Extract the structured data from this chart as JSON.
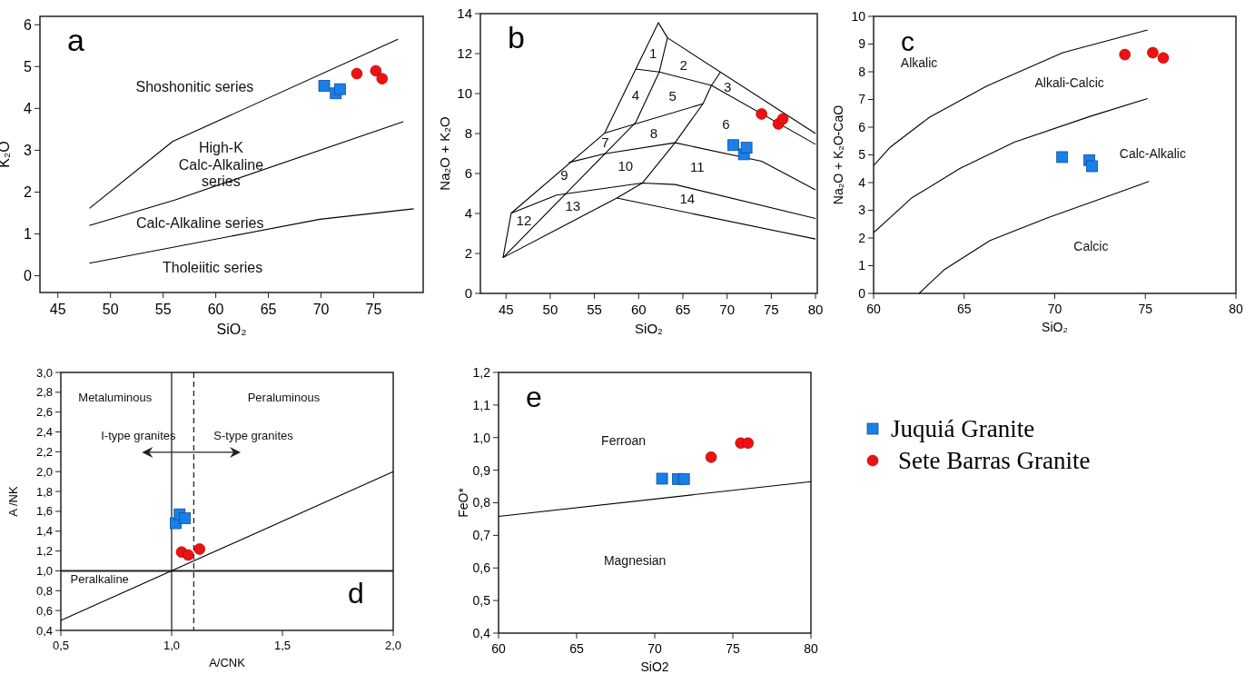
{
  "chart_data": [
    {
      "type": "scatter",
      "title": "a",
      "xlabel": "SiO₂",
      "ylabel": "K₂O",
      "xlim": [
        43.3,
        79.7
      ],
      "ylim": [
        -0.4,
        6.2
      ],
      "xticks": [
        45,
        50,
        55,
        60,
        65,
        70,
        75
      ],
      "yticks": [
        0,
        1,
        2,
        3,
        4,
        5,
        6
      ],
      "series": [
        {
          "type": "scatter",
          "color": "#1a7fe8",
          "marker": "square",
          "x": [
            70.3,
            71.4,
            71.8
          ],
          "values": [
            4.54,
            4.36,
            4.46
          ]
        },
        {
          "type": "scatter",
          "color": "#ee1111",
          "marker": "circle",
          "x": [
            73.4,
            75.2,
            75.8
          ],
          "values": [
            4.83,
            4.9,
            4.71
          ]
        },
        {
          "type": "line",
          "color": "#000000",
          "x": [
            48,
            55.9,
            77.3
          ],
          "values": [
            1.61,
            3.21,
            5.65
          ]
        },
        {
          "type": "line",
          "color": "#000000",
          "x": [
            48,
            56.1,
            77.8
          ],
          "values": [
            1.2,
            1.81,
            3.68
          ]
        },
        {
          "type": "line",
          "color": "#000000",
          "x": [
            48,
            69.9,
            78.8
          ],
          "values": [
            0.3,
            1.35,
            1.6
          ]
        }
      ],
      "annotations": [
        "Shoshonitic series",
        "High-K\nCalc-Alkaline\nseries",
        "Calc-Alkaline series",
        "Tholeiitic series"
      ]
    },
    {
      "type": "scatter",
      "title": "b",
      "xlabel": "SiO₂",
      "ylabel": "Na₂O + K₂O",
      "xlim": [
        42.1,
        80.2
      ],
      "ylim": [
        0,
        14
      ],
      "xticks": [
        45,
        50,
        55,
        60,
        65,
        70,
        75,
        80
      ],
      "yticks": [
        0,
        2,
        4,
        6,
        8,
        10,
        12,
        14
      ],
      "series": [
        {
          "type": "scatter",
          "color": "#1a7fe8",
          "marker": "square",
          "x": [
            70.7,
            71.9,
            72.2
          ],
          "values": [
            7.42,
            6.96,
            7.29
          ]
        },
        {
          "type": "scatter",
          "color": "#ee1111",
          "marker": "circle",
          "x": [
            73.9,
            75.8,
            76.3
          ],
          "values": [
            8.98,
            8.48,
            8.73
          ]
        },
        {
          "type": "line",
          "color": "#000000",
          "x": [
            44.66,
            45.58,
            56.15,
            62.23,
            63.26,
            80
          ],
          "values": [
            1.79,
            4.01,
            8.02,
            13.55,
            12.79,
            8.0
          ]
        },
        {
          "type": "line",
          "color": "#000000",
          "x": [
            63.26,
            62.33,
            59.65,
            44.66
          ],
          "values": [
            12.79,
            11.08,
            8.55,
            1.79
          ]
        },
        {
          "type": "line",
          "color": "#000000",
          "x": [
            59.65,
            62.33,
            68.23,
            80
          ],
          "values": [
            11.23,
            11.08,
            10.41,
            7.46
          ]
        },
        {
          "type": "line",
          "color": "#000000",
          "x": [
            69.26,
            68.23,
            67.27,
            64.11,
            60.41,
            57.53,
            44.66
          ],
          "values": [
            11.08,
            10.41,
            9.49,
            7.54,
            5.52,
            4.77,
            1.79
          ]
        },
        {
          "type": "line",
          "color": "#000000",
          "x": [
            56.15,
            67.27
          ],
          "values": [
            8.02,
            9.49
          ]
        },
        {
          "type": "line",
          "color": "#000000",
          "x": [
            52.1,
            56.15,
            64.11,
            73.9,
            80
          ],
          "values": [
            6.55,
            6.99,
            7.54,
            6.61,
            5.18
          ]
        },
        {
          "type": "line",
          "color": "#000000",
          "x": [
            45.58,
            50.73,
            60.41,
            64.11,
            80
          ],
          "values": [
            4.01,
            4.92,
            5.52,
            5.45,
            3.75
          ]
        },
        {
          "type": "line",
          "color": "#000000",
          "x": [
            57.53,
            80
          ],
          "values": [
            4.77,
            2.72
          ]
        }
      ],
      "annotations": [
        "1",
        "2",
        "3",
        "4",
        "5",
        "6",
        "7",
        "8",
        "9",
        "10",
        "11",
        "12",
        "13",
        "14"
      ]
    },
    {
      "type": "scatter",
      "title": "c",
      "xlabel": "SiO₂",
      "ylabel": "Na₂O + K₂O-CaO",
      "xlim": [
        60,
        80
      ],
      "ylim": [
        0,
        10
      ],
      "xticks": [
        60,
        65,
        70,
        75,
        80
      ],
      "yticks": [
        0,
        1,
        2,
        3,
        4,
        5,
        6,
        7,
        8,
        9,
        10
      ],
      "series": [
        {
          "type": "scatter",
          "color": "#1a7fe8",
          "marker": "square",
          "x": [
            70.41,
            71.91,
            72.06
          ],
          "values": [
            4.92,
            4.81,
            4.59
          ]
        },
        {
          "type": "scatter",
          "color": "#ee1111",
          "marker": "circle",
          "x": [
            73.87,
            75.41,
            75.99
          ],
          "values": [
            8.62,
            8.69,
            8.5
          ]
        },
        {
          "type": "line",
          "color": "#000000",
          "x": [
            60,
            60.92,
            63.09,
            66.27,
            70.44,
            75.12
          ],
          "values": [
            4.61,
            5.28,
            6.36,
            7.49,
            8.69,
            9.51
          ]
        },
        {
          "type": "line",
          "color": "#000000",
          "x": [
            60,
            62.09,
            64.76,
            67.77,
            71.95,
            75.12
          ],
          "values": [
            2.19,
            3.44,
            4.51,
            5.46,
            6.39,
            7.03
          ]
        },
        {
          "type": "line",
          "color": "#000000",
          "x": [
            62.51,
            63.93,
            66.43,
            69.61,
            72.45,
            75.2
          ],
          "values": [
            0,
            0.87,
            1.91,
            2.73,
            3.39,
            4.04
          ]
        }
      ],
      "annotations": [
        "Alkalic",
        "Alkali-Calcic",
        "Calc-Alkalic",
        "Calcic"
      ]
    },
    {
      "type": "scatter",
      "title": "d",
      "xlabel": "A/CNK",
      "ylabel": "A /NK",
      "xlim": [
        0.5,
        2.0
      ],
      "ylim": [
        0.4,
        3.0
      ],
      "xticks": [
        {
          "value": 0.5,
          "label": "0,5"
        },
        {
          "value": 1.0,
          "label": "1,0"
        },
        {
          "value": 1.5,
          "label": "1,5"
        },
        {
          "value": 2.0,
          "label": "2,0"
        }
      ],
      "yticks": [
        {
          "value": 0.4,
          "label": "0,4"
        },
        {
          "value": 0.6,
          "label": "0,6"
        },
        {
          "value": 0.8,
          "label": "0,8"
        },
        {
          "value": 1.0,
          "label": "1,0"
        },
        {
          "value": 1.2,
          "label": "1,2"
        },
        {
          "value": 1.4,
          "label": "1,4"
        },
        {
          "value": 1.6,
          "label": "1,6"
        },
        {
          "value": 1.8,
          "label": "1,8"
        },
        {
          "value": 2.0,
          "label": "2,0"
        },
        {
          "value": 2.2,
          "label": "2,2"
        },
        {
          "value": 2.4,
          "label": "2,4"
        },
        {
          "value": 2.6,
          "label": "2,6"
        },
        {
          "value": 2.8,
          "label": "2,8"
        },
        {
          "value": 3.0,
          "label": "3,0"
        }
      ],
      "series": [
        {
          "type": "scatter",
          "color": "#1a7fe8",
          "marker": "square",
          "x": [
            1.018,
            1.036,
            1.06
          ],
          "values": [
            1.48,
            1.57,
            1.53
          ]
        },
        {
          "type": "scatter",
          "color": "#ee1111",
          "marker": "circle",
          "x": [
            1.045,
            1.075,
            1.126
          ],
          "values": [
            1.19,
            1.16,
            1.22
          ]
        },
        {
          "type": "line",
          "color": "#000000",
          "x": [
            0.5,
            2.0
          ],
          "values": [
            0.5,
            2.0
          ]
        }
      ],
      "ref_lines": [
        {
          "axis": "x",
          "value": 1.0
        },
        {
          "axis": "x",
          "value": 1.1,
          "line_style": "dashed"
        },
        {
          "axis": "y",
          "value": 1.0
        }
      ],
      "annotations": [
        "Metaluminous",
        "Peraluminous",
        "I-type granites",
        "S-type granites",
        "Peralkaline"
      ]
    },
    {
      "type": "scatter",
      "title": "e",
      "xlabel": "SiO2",
      "ylabel": "FeO*",
      "xlim": [
        60,
        80
      ],
      "ylim": [
        0.4,
        1.2
      ],
      "legend": "right",
      "xticks": [
        60,
        65,
        70,
        75,
        80
      ],
      "yticks": [
        {
          "value": 0.4,
          "label": "0,4"
        },
        {
          "value": 0.5,
          "label": "0,5"
        },
        {
          "value": 0.6,
          "label": "0,6"
        },
        {
          "value": 0.7,
          "label": "0,7"
        },
        {
          "value": 0.8,
          "label": "0,8"
        },
        {
          "value": 0.9,
          "label": "0,9"
        },
        {
          "value": 1.0,
          "label": "1,0"
        },
        {
          "value": 1.1,
          "label": "1,1"
        },
        {
          "value": 1.2,
          "label": "1,2"
        }
      ],
      "series": [
        {
          "type": "scatter",
          "name": "Juquiá Granite",
          "color": "#1a7fe8",
          "marker": "square",
          "x": [
            70.47,
            71.48,
            71.87
          ],
          "values": [
            0.874,
            0.873,
            0.873
          ]
        },
        {
          "type": "scatter",
          "name": "Sete Barras Granite",
          "color": "#ee1111",
          "marker": "circle",
          "x": [
            73.61,
            75.51,
            75.97
          ],
          "values": [
            0.94,
            0.983,
            0.983
          ]
        },
        {
          "type": "line",
          "color": "#000000",
          "x": [
            60,
            80
          ],
          "values": [
            0.758,
            0.865
          ]
        }
      ],
      "annotations": [
        "Ferroan",
        "Magnesian"
      ]
    }
  ]
}
